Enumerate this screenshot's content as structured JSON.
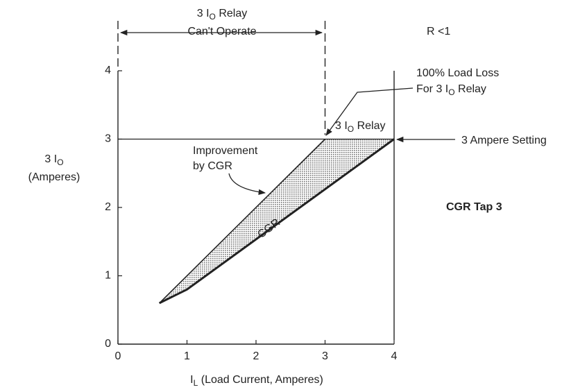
{
  "chart_data": {
    "type": "line",
    "x_label": [
      [
        "I",
        "L",
        " (Load Current, Amperes)"
      ]
    ],
    "y_label": [
      [
        "3 I",
        "O"
      ],
      [
        "(Amperes)"
      ]
    ],
    "xlim": [
      0,
      4
    ],
    "ylim": [
      0,
      4
    ],
    "xticks": [
      0,
      1,
      2,
      3,
      4
    ],
    "yticks": [
      0,
      1,
      2,
      3,
      4
    ],
    "setting": 3,
    "series": [
      {
        "name": "3 I O Relay",
        "color": "#222",
        "x": [
          0.6,
          3
        ],
        "values": [
          0.6,
          3
        ]
      },
      {
        "name": "CGR",
        "color": "#222",
        "x": [
          0.6,
          1,
          4
        ],
        "values": [
          0.6,
          0.8,
          3
        ]
      }
    ],
    "fill_color": "#c8c8c8",
    "annotations": [
      [
        [
          "3 I",
          "O",
          " Relay"
        ],
        [
          "Can't Operate"
        ]
      ],
      [
        [
          "R <1"
        ]
      ],
      [
        [
          "100% Load Loss"
        ],
        [
          "For 3 I",
          "O",
          " Relay"
        ]
      ],
      [
        [
          "3 I",
          "O",
          " Relay"
        ]
      ],
      [
        [
          "3 Ampere Setting"
        ]
      ],
      [
        [
          "Improvement"
        ],
        [
          "by CGR"
        ]
      ],
      [
        [
          "CGR"
        ]
      ],
      [
        [
          "CGR Tap 3"
        ]
      ]
    ]
  }
}
